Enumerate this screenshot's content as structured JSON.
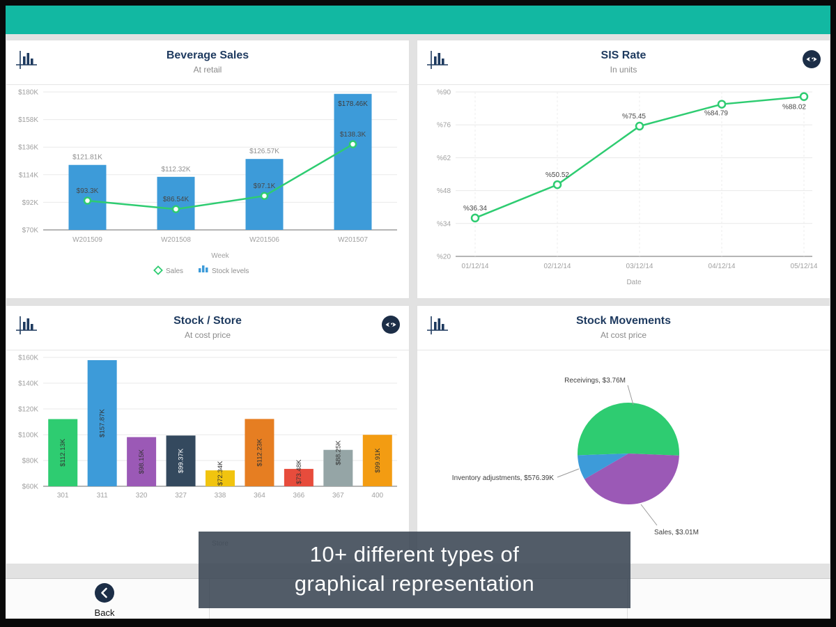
{
  "caption": {
    "line1": "10+ different types of",
    "line2": "graphical representation"
  },
  "footer": {
    "back_label": "Back"
  },
  "colors": {
    "topbar_teal": "#12b8a2",
    "panel_title_navy": "#1e3a5f",
    "icon_navy": "#1c2e47",
    "line_green": "#2ecc71",
    "bar_blue": "#3d9bd9"
  },
  "chart_data": [
    {
      "id": "beverage-sales",
      "type": "bar",
      "title": "Beverage Sales",
      "subtitle": "At retail",
      "xlabel": "Week",
      "categories": [
        "W201509",
        "W201508",
        "W201506",
        "W201507"
      ],
      "series": [
        {
          "name": "Stock levels",
          "kind": "bar",
          "color": "#3d9bd9",
          "values": [
            121.81,
            112.32,
            126.57,
            178.46
          ],
          "labels": [
            "$121.81K",
            "$112.32K",
            "$126.57K",
            "$178.46K"
          ]
        },
        {
          "name": "Sales",
          "kind": "line",
          "color": "#2ecc71",
          "values": [
            93.3,
            86.54,
            97.1,
            138.3
          ],
          "labels": [
            "$93.3K",
            "$86.54K",
            "$97.1K",
            "$138.3K"
          ]
        }
      ],
      "ylim": [
        70,
        180
      ],
      "yticks": [
        "$70K",
        "$92K",
        "$114K",
        "$136K",
        "$158K",
        "$180K"
      ],
      "legend": [
        {
          "label": "Sales",
          "marker": "diamond",
          "color": "#2ecc71"
        },
        {
          "label": "Stock levels",
          "marker": "bars",
          "color": "#3d9bd9"
        }
      ],
      "eye_icon": false
    },
    {
      "id": "sis-rate",
      "type": "line",
      "title": "SIS Rate",
      "subtitle": "In units",
      "xlabel": "Date",
      "categories": [
        "01/12/14",
        "02/12/14",
        "03/12/14",
        "04/12/14",
        "05/12/14"
      ],
      "values": [
        36.34,
        50.52,
        75.45,
        84.79,
        88.02
      ],
      "labels": [
        "%36.34",
        "%50.52",
        "%75.45",
        "%84.79",
        "%88.02"
      ],
      "color": "#2ecc71",
      "ylim": [
        20,
        90
      ],
      "yticks": [
        "%20",
        "%34",
        "%48",
        "%62",
        "%76",
        "%90"
      ],
      "eye_icon": true
    },
    {
      "id": "stock-store",
      "type": "bar",
      "title": "Stock / Store",
      "subtitle": "At cost price",
      "xlabel": "Store",
      "categories": [
        "301",
        "311",
        "320",
        "327",
        "338",
        "364",
        "366",
        "367",
        "400"
      ],
      "values": [
        112.13,
        157.87,
        98.15,
        99.37,
        72.34,
        112.23,
        73.48,
        88.25,
        99.91
      ],
      "labels": [
        "$112.13K",
        "$157.87K",
        "$98.15K",
        "$99.37K",
        "$72.34K",
        "$112.23K",
        "$73.48K",
        "$88.25K",
        "$99.91K"
      ],
      "colors": [
        "#2ecc71",
        "#3d9bd9",
        "#9b59b6",
        "#34495e",
        "#f1c40f",
        "#e67e22",
        "#e74c3c",
        "#95a5a6",
        "#f39c12"
      ],
      "ylim": [
        60,
        160
      ],
      "yticks": [
        "$60K",
        "$80K",
        "$100K",
        "$120K",
        "$140K",
        "$160K"
      ],
      "eye_icon": true
    },
    {
      "id": "stock-movements",
      "type": "pie",
      "title": "Stock Movements",
      "subtitle": "At cost price",
      "slices": [
        {
          "label": "Receivings, $3.76M",
          "value": 3.76,
          "color": "#2ecc71"
        },
        {
          "label": "Sales, $3.01M",
          "value": 3.01,
          "color": "#9b59b6"
        },
        {
          "label": "Inventory adjustments, $576.39K",
          "value": 0.57639,
          "color": "#3d9bd9"
        }
      ],
      "eye_icon": false
    }
  ]
}
